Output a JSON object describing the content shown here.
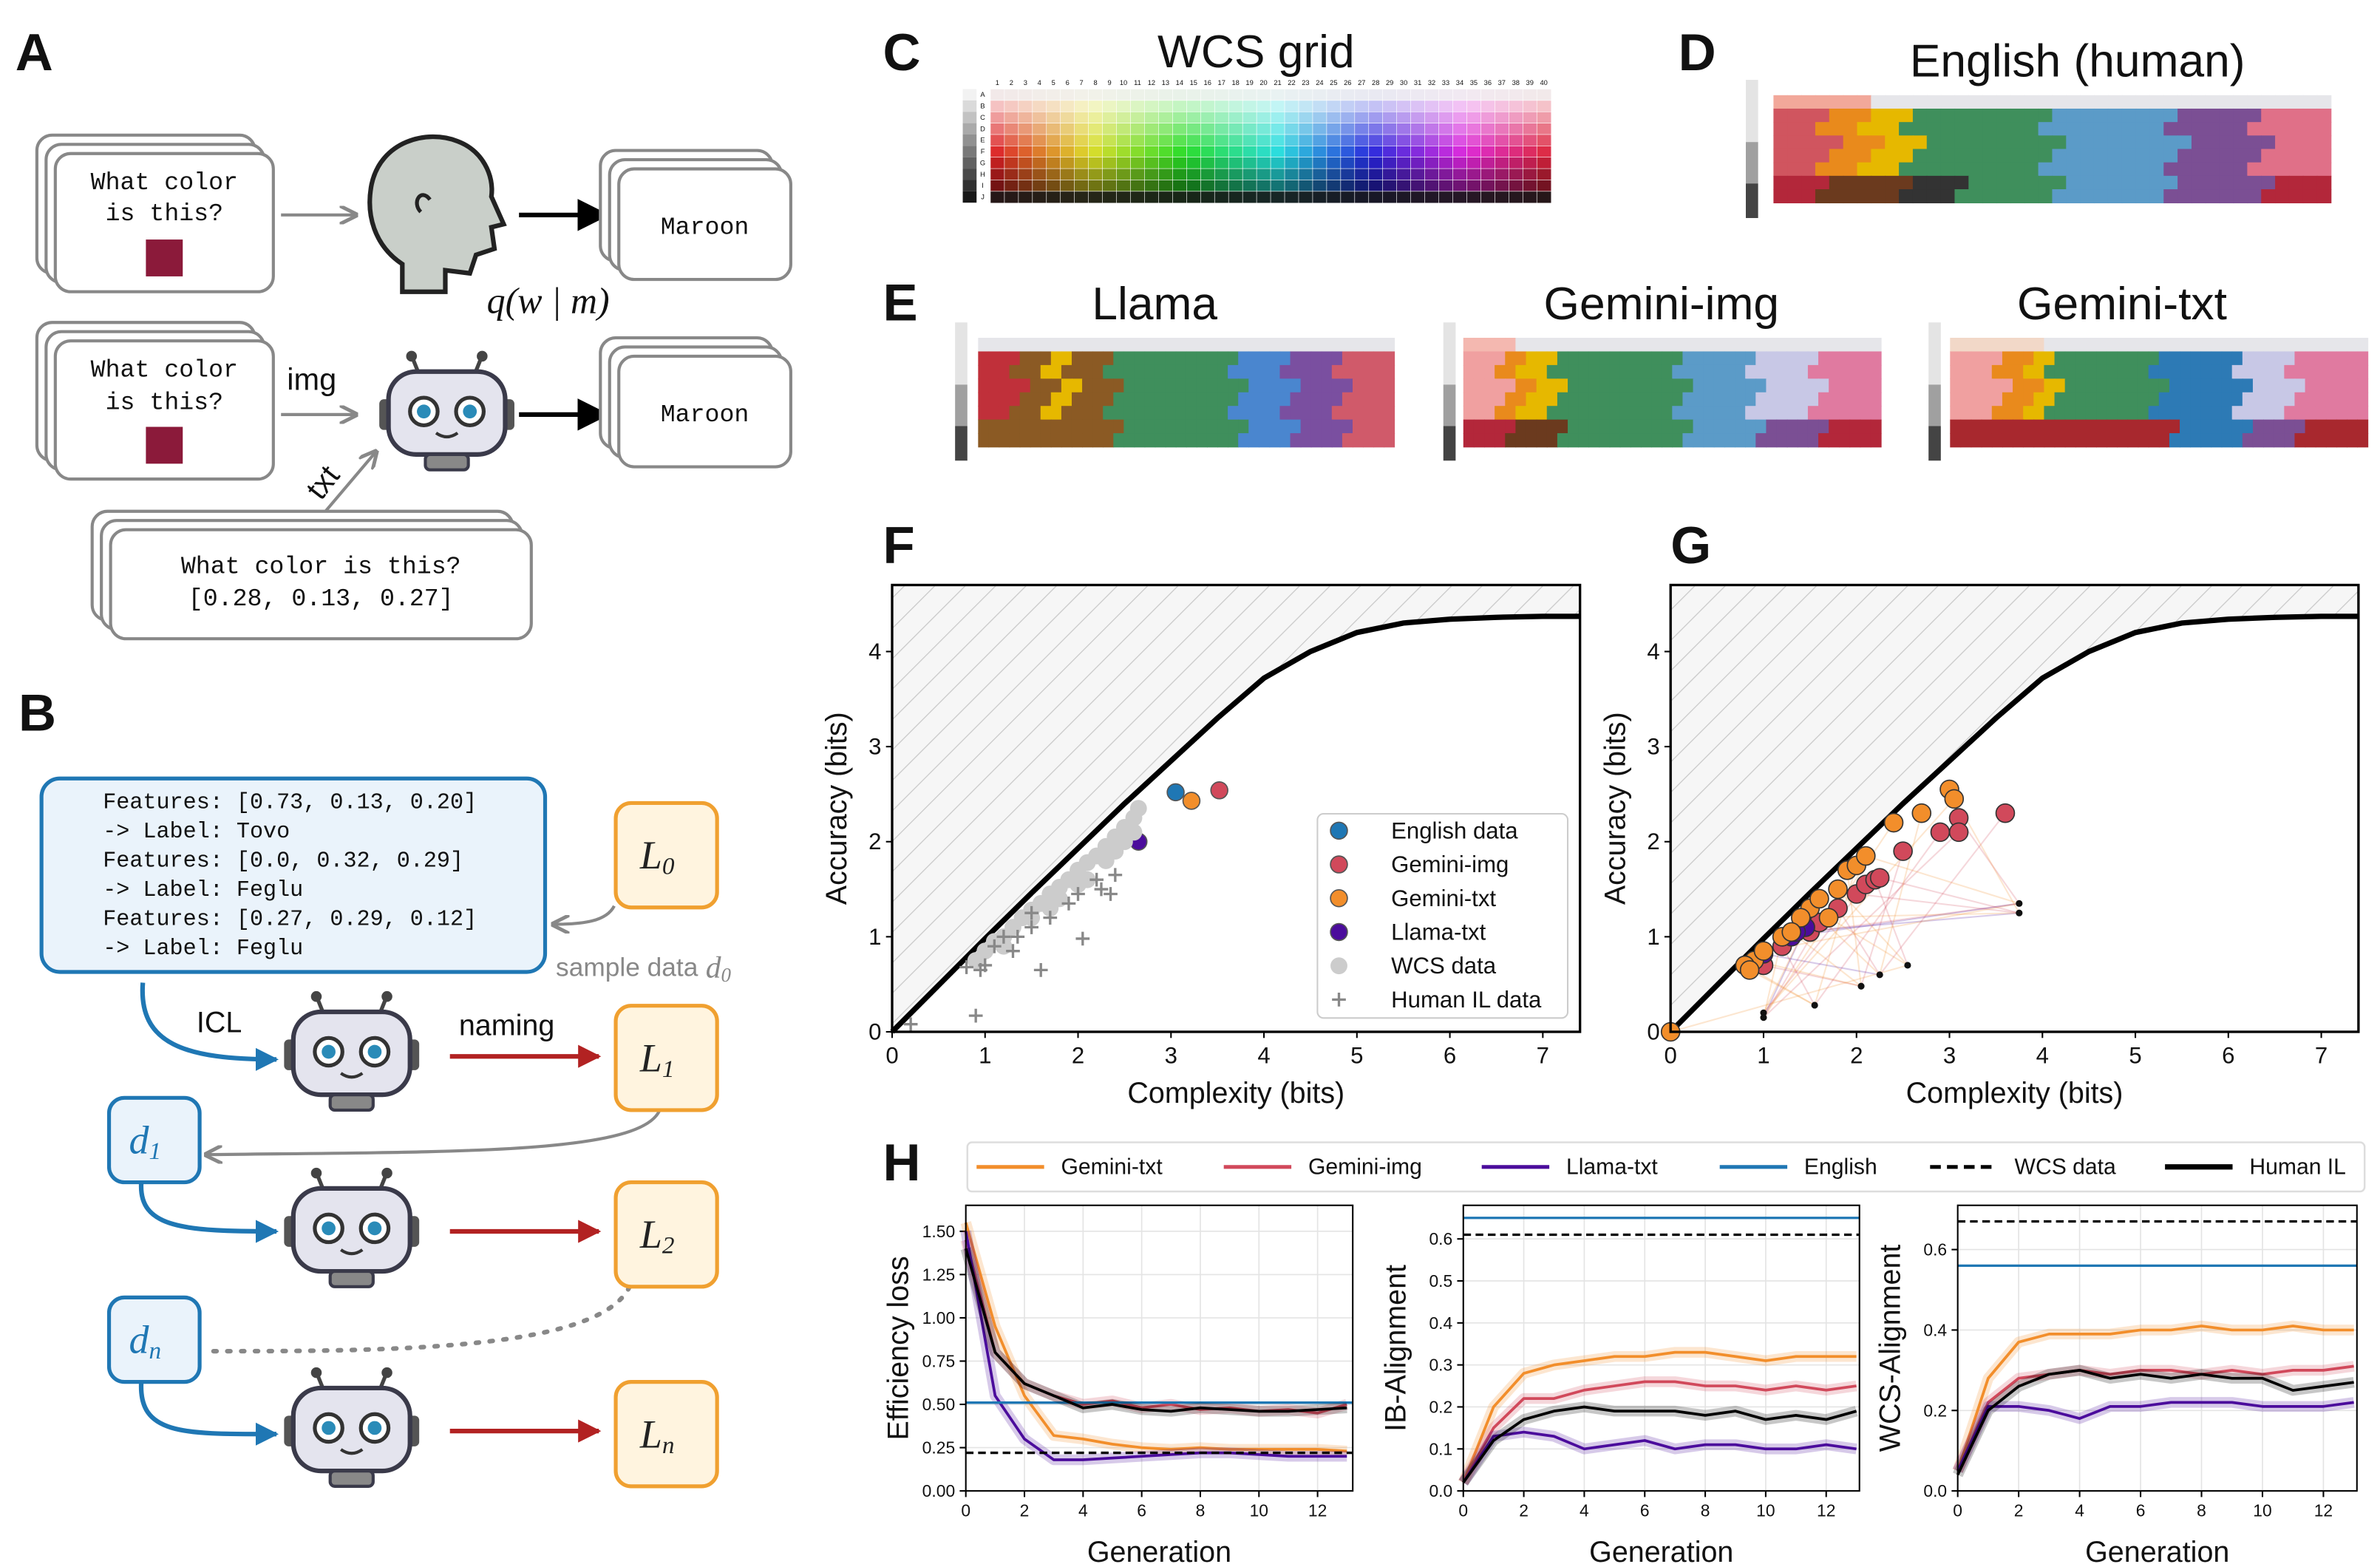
{
  "panel_labels": [
    "A",
    "B",
    "C",
    "D",
    "E",
    "F",
    "G",
    "H"
  ],
  "panel_a": {
    "query_lines": [
      "What color",
      "is this?"
    ],
    "answer": "Maroon",
    "human_policy": "q(w | m)",
    "img_label": "img",
    "txt_label": "txt",
    "text_prompt_lines": [
      "What color is this?",
      "[0.28, 0.13, 0.27]"
    ]
  },
  "panel_b": {
    "prompt_lines": [
      "Features: [0.73, 0.13, 0.20]",
      "-> Label: Tovo",
      "Features: [0.0, 0.32, 0.29]",
      "-> Label: Feglu",
      "Features: [0.27, 0.29, 0.12]",
      "-> Label: Feglu"
    ],
    "sample_label": {
      "text": "sample data",
      "var": "d",
      "sub": "0"
    },
    "icl": "ICL",
    "naming": "naming",
    "languages": [
      {
        "var": "L",
        "sub": "0"
      },
      {
        "var": "L",
        "sub": "1"
      },
      {
        "var": "L",
        "sub": "2"
      },
      {
        "var": "L",
        "sub": "n"
      }
    ],
    "data_boxes": [
      {
        "var": "d",
        "sub": "1"
      },
      {
        "var": "d",
        "sub": "n"
      }
    ]
  },
  "panel_c": {
    "title": "WCS grid",
    "columns": [
      1,
      2,
      3,
      4,
      5,
      6,
      7,
      8,
      9,
      10,
      11,
      12,
      13,
      14,
      15,
      16,
      17,
      18,
      19,
      20,
      21,
      22,
      23,
      24,
      25,
      26,
      27,
      28,
      29,
      30,
      31,
      32,
      33,
      34,
      35,
      36,
      37,
      38,
      39,
      40
    ],
    "rows": [
      "A",
      "B",
      "C",
      "D",
      "E",
      "F",
      "G",
      "H",
      "I",
      "J"
    ]
  },
  "panel_d": {
    "title": "English (human)"
  },
  "panel_e": {
    "titles": [
      "Llama",
      "Gemini-img",
      "Gemini-txt"
    ]
  },
  "chart_data": [
    {
      "type": "scatter",
      "xlabel": "Complexity (bits)",
      "ylabel": "Accuracy (bits)",
      "xlim": [
        0,
        7.4
      ],
      "ylim": [
        0,
        4.7
      ],
      "xticks": [
        0,
        1,
        2,
        3,
        4,
        5,
        6,
        7
      ],
      "yticks": [
        0,
        1,
        2,
        3,
        4
      ],
      "legend": "lower right",
      "curve": {
        "color": "#000000",
        "x": [
          0,
          0.5,
          1,
          1.5,
          2,
          2.5,
          3,
          3.5,
          4,
          4.5,
          5,
          5.5,
          6,
          6.5,
          7,
          7.4
        ],
        "y": [
          0,
          0.49,
          0.98,
          1.46,
          1.93,
          2.4,
          2.85,
          3.3,
          3.72,
          4.0,
          4.2,
          4.3,
          4.34,
          4.36,
          4.37,
          4.37
        ]
      },
      "series": [
        {
          "name": "English data",
          "color": "#1f77b4",
          "marker": "circle",
          "x": [
            3.05
          ],
          "y": [
            2.52
          ]
        },
        {
          "name": "Gemini-img",
          "color": "#d1495b",
          "marker": "circle",
          "x": [
            3.52
          ],
          "y": [
            2.54
          ]
        },
        {
          "name": "Gemini-txt",
          "color": "#f28e2b",
          "marker": "circle",
          "x": [
            3.22
          ],
          "y": [
            2.43
          ]
        },
        {
          "name": "Llama-txt",
          "color": "#4b0c9c",
          "marker": "circle",
          "x": [
            2.65
          ],
          "y": [
            2.0
          ]
        },
        {
          "name": "WCS data",
          "color": "#cccccc",
          "marker": "circle",
          "x": [
            0.9,
            1.0,
            1.1,
            1.2,
            1.3,
            1.4,
            1.5,
            1.6,
            1.7,
            1.8,
            1.9,
            2.0,
            2.1,
            2.2,
            2.3,
            2.4,
            2.5,
            2.6,
            2.65,
            1.5,
            1.8,
            2.1,
            2.3,
            2.5,
            2.6,
            2.4,
            2.0,
            1.7,
            1.2
          ],
          "y": [
            0.75,
            0.85,
            0.95,
            1.0,
            1.1,
            1.2,
            1.28,
            1.35,
            1.45,
            1.52,
            1.6,
            1.7,
            1.78,
            1.85,
            1.95,
            2.05,
            2.15,
            2.25,
            2.35,
            1.2,
            1.4,
            1.6,
            1.8,
            2.0,
            2.1,
            1.9,
            1.55,
            1.3,
            0.9
          ]
        },
        {
          "name": "Human IL data",
          "color": "#888888",
          "marker": "plus",
          "x": [
            0.2,
            0.8,
            0.9,
            0.95,
            1.0,
            1.1,
            1.2,
            1.3,
            1.5,
            1.6,
            1.7,
            1.9,
            2.0,
            2.05,
            2.2,
            2.25,
            2.35,
            2.4,
            1.5,
            1.35
          ],
          "y": [
            0.08,
            0.68,
            0.17,
            0.65,
            0.7,
            0.9,
            1.0,
            0.85,
            1.1,
            0.65,
            1.2,
            1.35,
            1.45,
            0.98,
            1.6,
            1.5,
            1.45,
            1.65,
            1.25,
            1.0
          ]
        }
      ]
    },
    {
      "type": "scatter",
      "xlabel": "Complexity (bits)",
      "ylabel": "Accuracy (bits)",
      "xlim": [
        0,
        7.4
      ],
      "ylim": [
        0,
        4.7
      ],
      "xticks": [
        0,
        1,
        2,
        3,
        4,
        5,
        6,
        7
      ],
      "yticks": [
        0,
        1,
        2,
        3,
        4
      ],
      "edgecolor": "#333333",
      "trajectories": true,
      "curve": {
        "color": "#000000",
        "x": [
          0,
          0.5,
          1,
          1.5,
          2,
          2.5,
          3,
          3.5,
          4,
          4.5,
          5,
          5.5,
          6,
          6.5,
          7,
          7.4
        ],
        "y": [
          0,
          0.49,
          0.98,
          1.46,
          1.93,
          2.4,
          2.85,
          3.3,
          3.72,
          4.0,
          4.2,
          4.3,
          4.34,
          4.36,
          4.37,
          4.37
        ]
      },
      "series": [
        {
          "color": "#111111",
          "marker": "dot",
          "x": [
            1.0,
            1.55,
            2.25,
            2.55,
            3.75,
            3.75,
            2.05,
            1.0
          ],
          "y": [
            0.2,
            0.28,
            0.6,
            0.7,
            1.35,
            1.25,
            0.48,
            0.15
          ]
        },
        {
          "color": "#d1495b",
          "marker": "circle",
          "x": [
            1.0,
            1.2,
            1.5,
            1.6,
            1.8,
            2.0,
            2.1,
            2.2,
            2.5,
            2.9,
            3.1,
            3.1,
            3.6,
            2.25
          ],
          "y": [
            0.7,
            0.9,
            1.05,
            1.15,
            1.3,
            1.45,
            1.55,
            1.6,
            1.9,
            2.1,
            2.25,
            2.1,
            2.3,
            1.62
          ]
        },
        {
          "color": "#4b0c9c",
          "marker": "circle",
          "x": [
            1.3,
            1.45,
            1.0,
            1.35
          ],
          "y": [
            1.0,
            1.1,
            0.82,
            1.05
          ]
        },
        {
          "color": "#f28e2b",
          "marker": "circle",
          "x": [
            0,
            0.9,
            0.8,
            1.0,
            1.2,
            1.5,
            1.4,
            1.6,
            1.8,
            1.9,
            2.0,
            2.1,
            2.4,
            2.7,
            3.0,
            3.05,
            1.7,
            1.3,
            0.85
          ],
          "y": [
            0,
            0.75,
            0.7,
            0.85,
            1.0,
            1.3,
            1.2,
            1.4,
            1.5,
            1.7,
            1.75,
            1.85,
            2.2,
            2.3,
            2.55,
            2.45,
            1.2,
            1.05,
            0.65
          ]
        }
      ]
    },
    {
      "type": "line",
      "xlabel": "Generation",
      "ylabel": "Efficiency loss",
      "grid": true,
      "x": [
        0,
        1,
        2,
        3,
        4,
        5,
        6,
        7,
        8,
        9,
        10,
        11,
        12,
        13
      ],
      "xlim": [
        0,
        13.2
      ],
      "ylim": [
        0,
        1.65
      ],
      "xticks": [
        0,
        2,
        4,
        6,
        8,
        10,
        12
      ],
      "yticks": [
        {
          "value": 0,
          "label": "0.00"
        },
        {
          "value": 0.25,
          "label": "0.25"
        },
        {
          "value": 0.5,
          "label": "0.50"
        },
        {
          "value": 0.75,
          "label": "0.75"
        },
        {
          "value": 1.0,
          "label": "1.00"
        },
        {
          "value": 1.25,
          "label": "1.25"
        },
        {
          "value": 1.5,
          "label": "1.50"
        }
      ],
      "series": [
        {
          "name": "Gemini-txt",
          "color": "#f28e2b",
          "values": [
            1.55,
            0.95,
            0.55,
            0.32,
            0.3,
            0.27,
            0.25,
            0.24,
            0.25,
            0.24,
            0.24,
            0.24,
            0.24,
            0.23
          ]
        },
        {
          "name": "Gemini-img",
          "color": "#d1495b",
          "values": [
            1.45,
            0.8,
            0.62,
            0.55,
            0.5,
            0.52,
            0.48,
            0.5,
            0.47,
            0.48,
            0.46,
            0.47,
            0.45,
            0.5
          ]
        },
        {
          "name": "Llama-txt",
          "color": "#4b0c9c",
          "values": [
            1.5,
            0.55,
            0.3,
            0.18,
            0.18,
            0.19,
            0.2,
            0.21,
            0.22,
            0.22,
            0.21,
            0.2,
            0.2,
            0.2
          ]
        },
        {
          "name": "English",
          "color": "#1f77b4",
          "value": 0.51
        },
        {
          "name": "WCS data",
          "color": "#000000",
          "dash": true,
          "value": 0.22
        },
        {
          "name": "Human IL",
          "color": "#000000",
          "values": [
            1.4,
            0.8,
            0.62,
            0.55,
            0.48,
            0.5,
            0.47,
            0.46,
            0.48,
            0.47,
            0.46,
            0.46,
            0.47,
            0.48
          ]
        }
      ]
    },
    {
      "type": "line",
      "xlabel": "Generation",
      "ylabel": "IB-Alignment",
      "grid": true,
      "x": [
        0,
        1,
        2,
        3,
        4,
        5,
        6,
        7,
        8,
        9,
        10,
        11,
        12,
        13
      ],
      "xlim": [
        0,
        13.1
      ],
      "ylim": [
        0,
        0.68
      ],
      "xticks": [
        0,
        2,
        4,
        6,
        8,
        10,
        12
      ],
      "yticks": [
        {
          "value": 0,
          "label": "0.0"
        },
        {
          "value": 0.1,
          "label": "0.1"
        },
        {
          "value": 0.2,
          "label": "0.2"
        },
        {
          "value": 0.3,
          "label": "0.3"
        },
        {
          "value": 0.4,
          "label": "0.4"
        },
        {
          "value": 0.5,
          "label": "0.5"
        },
        {
          "value": 0.6,
          "label": "0.6"
        }
      ],
      "series": [
        {
          "values": [
            0.02,
            0.2,
            0.28,
            0.3,
            0.31,
            0.32,
            0.32,
            0.33,
            0.33,
            0.32,
            0.31,
            0.32,
            0.32,
            0.32
          ]
        },
        {
          "values": [
            0.02,
            0.15,
            0.22,
            0.22,
            0.24,
            0.25,
            0.26,
            0.26,
            0.25,
            0.25,
            0.24,
            0.25,
            0.24,
            0.25
          ]
        },
        {
          "values": [
            0.02,
            0.13,
            0.14,
            0.13,
            0.1,
            0.11,
            0.12,
            0.1,
            0.11,
            0.11,
            0.1,
            0.1,
            0.11,
            0.1
          ]
        },
        {
          "value": 0.65
        },
        {
          "value": 0.61
        },
        {
          "values": [
            0.02,
            0.12,
            0.17,
            0.19,
            0.2,
            0.19,
            0.19,
            0.19,
            0.18,
            0.19,
            0.17,
            0.18,
            0.17,
            0.19
          ]
        }
      ]
    },
    {
      "type": "line",
      "xlabel": "Generation",
      "ylabel": "WCS-Alignment",
      "grid": true,
      "x": [
        0,
        1,
        2,
        3,
        4,
        5,
        6,
        7,
        8,
        9,
        10,
        11,
        12,
        13
      ],
      "xlim": [
        0,
        13.1
      ],
      "ylim": [
        0,
        0.71
      ],
      "xticks": [
        0,
        2,
        4,
        6,
        8,
        10,
        12
      ],
      "yticks": [
        {
          "value": 0,
          "label": "0.0"
        },
        {
          "value": 0.2,
          "label": "0.2"
        },
        {
          "value": 0.4,
          "label": "0.4"
        },
        {
          "value": 0.6,
          "label": "0.6"
        }
      ],
      "series": [
        {
          "values": [
            0.05,
            0.28,
            0.37,
            0.39,
            0.39,
            0.39,
            0.4,
            0.4,
            0.41,
            0.4,
            0.4,
            0.41,
            0.4,
            0.4
          ]
        },
        {
          "values": [
            0.05,
            0.22,
            0.28,
            0.29,
            0.3,
            0.29,
            0.3,
            0.3,
            0.29,
            0.3,
            0.29,
            0.3,
            0.3,
            0.31
          ]
        },
        {
          "values": [
            0.05,
            0.21,
            0.21,
            0.2,
            0.18,
            0.21,
            0.21,
            0.22,
            0.22,
            0.22,
            0.21,
            0.21,
            0.21,
            0.22
          ]
        },
        {
          "value": 0.56
        },
        {
          "value": 0.67
        },
        {
          "values": [
            0.04,
            0.2,
            0.26,
            0.29,
            0.3,
            0.28,
            0.29,
            0.28,
            0.29,
            0.28,
            0.28,
            0.25,
            0.26,
            0.27
          ]
        }
      ]
    }
  ]
}
